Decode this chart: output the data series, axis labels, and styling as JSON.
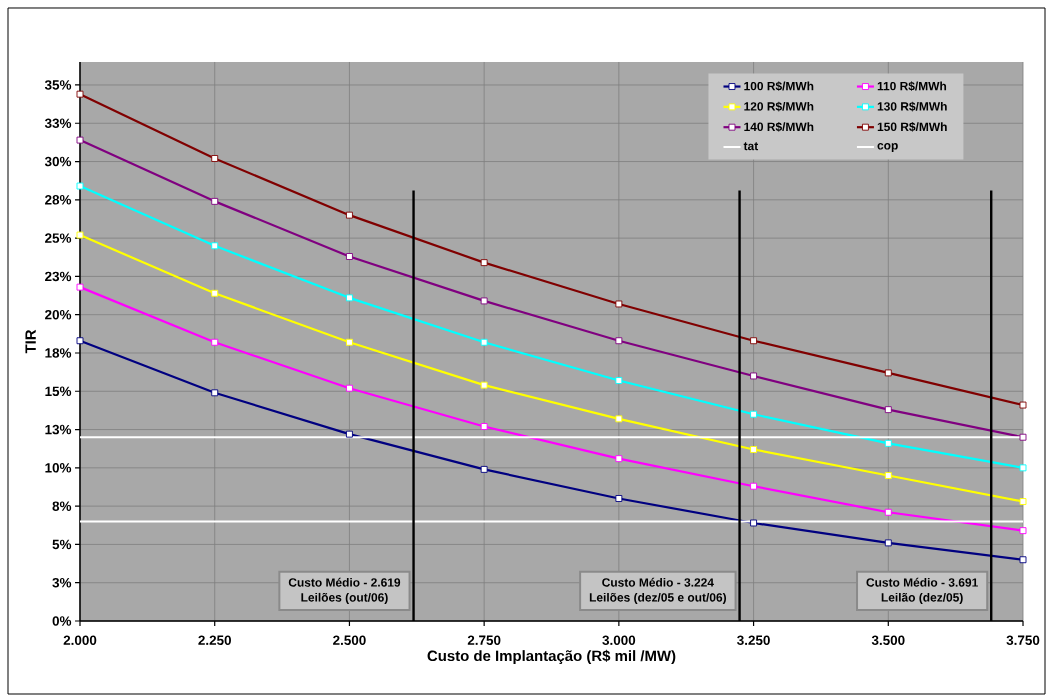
{
  "chart_data": {
    "type": "line",
    "xlabel": "Custo de Implantação (R$ mil /MW)",
    "ylabel": "TIR",
    "x": [
      2000,
      2250,
      2500,
      2750,
      3000,
      3250,
      3500,
      3750
    ],
    "series": [
      {
        "name": "100 R$/MWh",
        "color": "#000080",
        "values": [
          18.3,
          14.9,
          12.2,
          9.9,
          8.0,
          6.4,
          5.1,
          4.0
        ]
      },
      {
        "name": "110 R$/MWh",
        "color": "#ff00ff",
        "values": [
          21.8,
          18.2,
          15.2,
          12.7,
          10.6,
          8.8,
          7.1,
          5.9
        ]
      },
      {
        "name": "120 R$/MWh",
        "color": "#ffff00",
        "values": [
          25.2,
          21.4,
          18.2,
          15.4,
          13.2,
          11.2,
          9.5,
          7.8
        ]
      },
      {
        "name": "130 R$/MWh",
        "color": "#00ffff",
        "values": [
          28.4,
          24.5,
          21.1,
          18.2,
          15.7,
          13.5,
          11.6,
          10.0
        ]
      },
      {
        "name": "140 R$/MWh",
        "color": "#800080",
        "values": [
          31.4,
          27.4,
          23.8,
          20.9,
          18.3,
          16.0,
          13.8,
          12.0
        ]
      },
      {
        "name": "150 R$/MWh",
        "color": "#800000",
        "values": [
          34.4,
          30.2,
          26.5,
          23.4,
          20.7,
          18.3,
          16.2,
          14.1
        ]
      }
    ],
    "xlim": [
      2000,
      3750
    ],
    "xticks": [
      {
        "value": 2000,
        "label": "2.000"
      },
      {
        "value": 2250,
        "label": "2.250"
      },
      {
        "value": 2500,
        "label": "2.500"
      },
      {
        "value": 2750,
        "label": "2.750"
      },
      {
        "value": 3000,
        "label": "3.000"
      },
      {
        "value": 3250,
        "label": "3.250"
      },
      {
        "value": 3500,
        "label": "3.500"
      },
      {
        "value": 3750,
        "label": "3.750"
      }
    ],
    "ylim": [
      0,
      36.5
    ],
    "yticks": [
      {
        "value": 0,
        "label": "0%"
      },
      {
        "value": 2.5,
        "label": "3%"
      },
      {
        "value": 5,
        "label": "5%"
      },
      {
        "value": 7.5,
        "label": "8%"
      },
      {
        "value": 10,
        "label": "10%"
      },
      {
        "value": 12.5,
        "label": "13%"
      },
      {
        "value": 15,
        "label": "15%"
      },
      {
        "value": 17.5,
        "label": "18%"
      },
      {
        "value": 20,
        "label": "20%"
      },
      {
        "value": 22.5,
        "label": "23%"
      },
      {
        "value": 25,
        "label": "25%"
      },
      {
        "value": 27.5,
        "label": "28%"
      },
      {
        "value": 30,
        "label": "30%"
      },
      {
        "value": 32.5,
        "label": "33%"
      },
      {
        "value": 35,
        "label": "35%"
      }
    ],
    "ref_lines": [
      {
        "axis": "y",
        "value": 12,
        "label": "tat",
        "color": "#ffffff"
      },
      {
        "axis": "y",
        "value": 6.5,
        "label": "cop",
        "color": "#ffffff"
      },
      {
        "axis": "x",
        "value": 2619,
        "label": "Custo Médio - 2.619",
        "color": "#000000"
      },
      {
        "axis": "x",
        "value": 3224,
        "label": "Custo Médio - 3.224",
        "color": "#000000"
      },
      {
        "axis": "x",
        "value": 3691,
        "label": "Custo Médio - 3.691",
        "color": "#000000"
      }
    ],
    "annotations": [
      "Leilões (out/06)",
      "Leilões (dez/05 e out/06)",
      "Leilão (dez/05)"
    ],
    "grid": true,
    "legend": "top right",
    "marker": "square",
    "line_style": "solid"
  }
}
